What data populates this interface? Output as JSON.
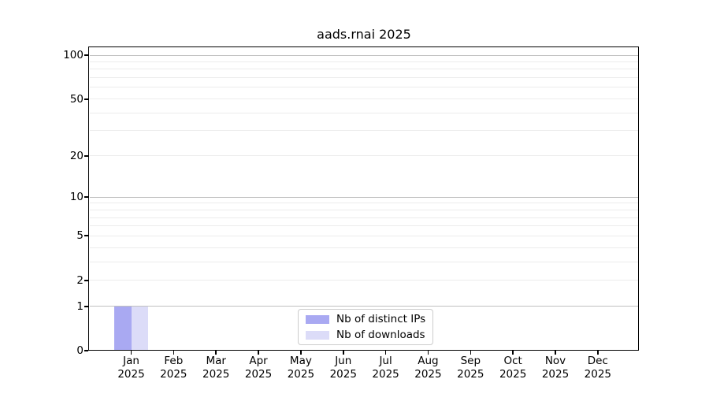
{
  "title": "aads.rnai 2025",
  "chart_data": {
    "type": "bar",
    "title": "aads.rnai 2025",
    "categories": [
      "Jan",
      "Feb",
      "Mar",
      "Apr",
      "May",
      "Jun",
      "Jul",
      "Aug",
      "Sep",
      "Oct",
      "Nov",
      "Dec"
    ],
    "category_year": "2025",
    "series": [
      {
        "name": "Nb of distinct IPs",
        "color": "#a9a9f2",
        "values": [
          1,
          0,
          0,
          0,
          0,
          0,
          0,
          0,
          0,
          0,
          0,
          0
        ]
      },
      {
        "name": "Nb of downloads",
        "color": "#dcdcf8",
        "values": [
          1,
          0,
          0,
          0,
          0,
          0,
          0,
          0,
          0,
          0,
          0,
          0
        ]
      }
    ],
    "y_axis": {
      "scale": "log10(1+x)",
      "tick_labels": [
        100,
        50,
        20,
        10,
        5,
        2,
        1,
        0
      ],
      "major_gridlines": [
        100,
        10,
        1
      ],
      "minor_gridlines": [
        90,
        80,
        70,
        60,
        50,
        40,
        30,
        20,
        9,
        8,
        7,
        6,
        5,
        4,
        3,
        2
      ],
      "range_top_value": 115,
      "range_bottom_value": 0
    },
    "xlabel": "",
    "ylabel": "",
    "grid": true,
    "legend": {
      "position": "bottom-center",
      "entries": [
        "Nb of distinct IPs",
        "Nb of downloads"
      ]
    }
  },
  "colors": {
    "background": "#ffffff",
    "spine": "#000000",
    "grid_minor": "#ececec",
    "grid_major": "#c0c0c0",
    "bar_distinct_ips": "#a9a9f2",
    "bar_downloads": "#dcdcf8",
    "legend_border": "#cccccc"
  }
}
